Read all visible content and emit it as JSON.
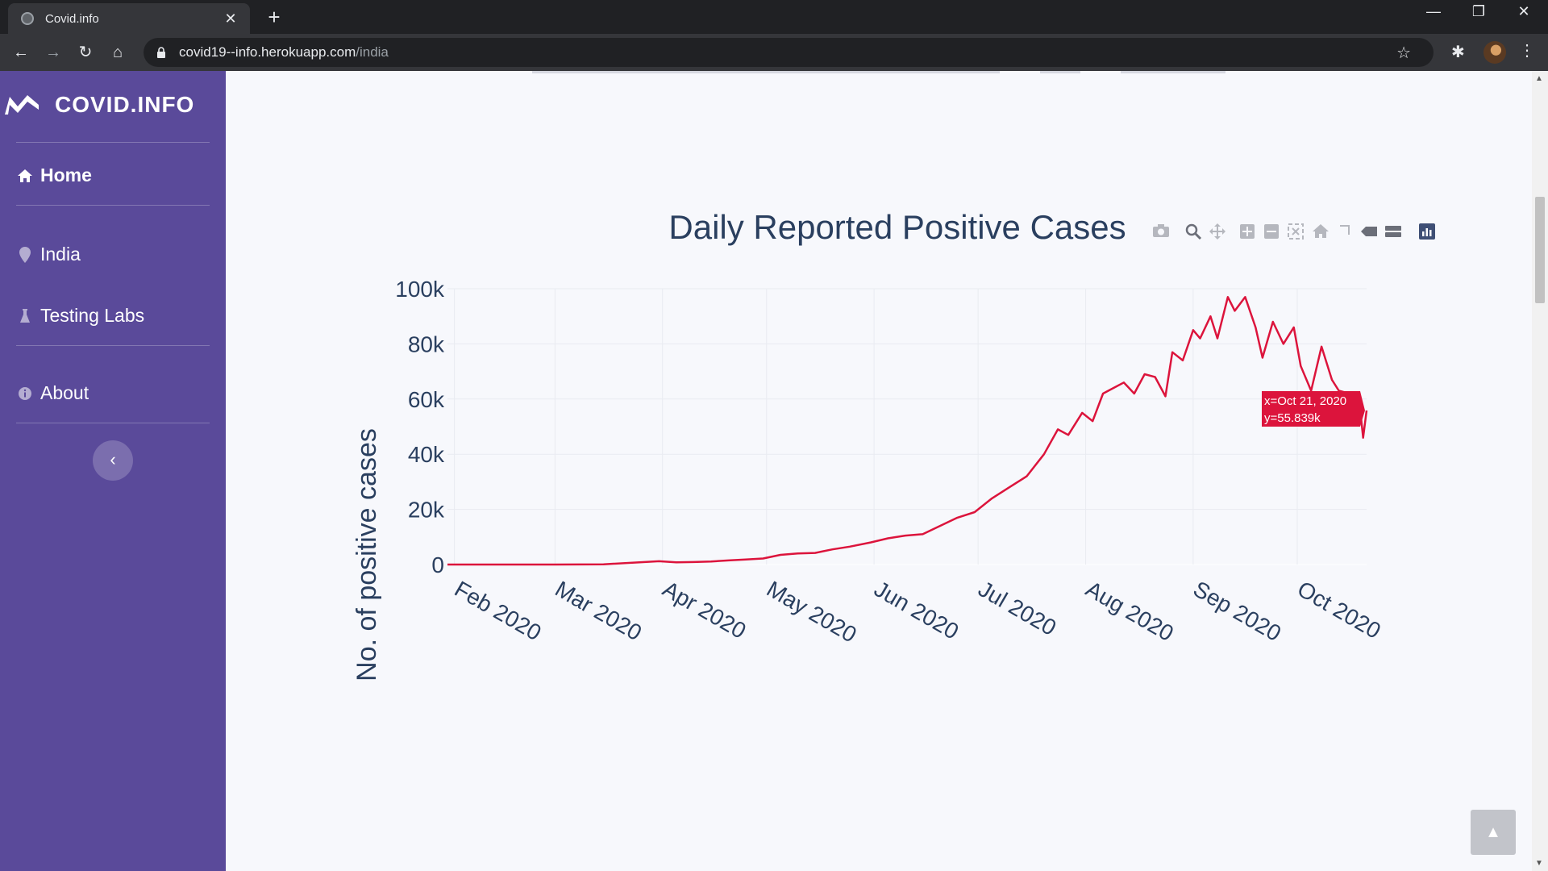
{
  "browser": {
    "tab_title": "Covid.info",
    "tab_close": "✕",
    "new_tab": "+",
    "url_host": "covid19--info.herokuapp.com",
    "url_path": "/india",
    "win_minimize": "—",
    "win_restore": "❐",
    "win_close": "✕"
  },
  "sidebar": {
    "brand": "COVID.INFO",
    "items": [
      {
        "label": "Home",
        "icon": "home-icon"
      },
      {
        "label": "India",
        "icon": "map-marker-icon"
      },
      {
        "label": "Testing Labs",
        "icon": "flask-icon"
      },
      {
        "label": "About",
        "icon": "info-icon"
      }
    ],
    "collapse_glyph": "‹"
  },
  "back_to_top_glyph": "▲",
  "colors": {
    "sidebar_bg": "#5a4a9a",
    "line": "#dc143c",
    "text": "#2a3f5f"
  },
  "chart_data": {
    "type": "line",
    "title": "Daily Reported Positive Cases",
    "ylabel": "No. of positive cases",
    "xlabel": "",
    "ylim": [
      0,
      100000
    ],
    "yticks": [
      "0",
      "20k",
      "40k",
      "60k",
      "80k",
      "100k"
    ],
    "xticks": [
      "Feb 2020",
      "Mar 2020",
      "Apr 2020",
      "May 2020",
      "Jun 2020",
      "Jul 2020",
      "Aug 2020",
      "Sep 2020",
      "Oct 2020"
    ],
    "xrange": [
      "2020-01-30",
      "2020-10-21"
    ],
    "grid": true,
    "series": [
      {
        "x": [
          "2020-01-30",
          "2020-02-15",
          "2020-03-01",
          "2020-03-15",
          "2020-03-31",
          "2020-04-05",
          "2020-04-10",
          "2020-04-15",
          "2020-04-20",
          "2020-04-25",
          "2020-04-30",
          "2020-05-05",
          "2020-05-10",
          "2020-05-15",
          "2020-05-20",
          "2020-05-25",
          "2020-05-31",
          "2020-06-05",
          "2020-06-10",
          "2020-06-15",
          "2020-06-20",
          "2020-06-25",
          "2020-06-30",
          "2020-07-05",
          "2020-07-10",
          "2020-07-15",
          "2020-07-20",
          "2020-07-24",
          "2020-07-27",
          "2020-07-31",
          "2020-08-03",
          "2020-08-06",
          "2020-08-09",
          "2020-08-12",
          "2020-08-15",
          "2020-08-18",
          "2020-08-21",
          "2020-08-24",
          "2020-08-26",
          "2020-08-29",
          "2020-09-01",
          "2020-09-03",
          "2020-09-06",
          "2020-09-08",
          "2020-09-11",
          "2020-09-13",
          "2020-09-16",
          "2020-09-19",
          "2020-09-21",
          "2020-09-24",
          "2020-09-27",
          "2020-09-30",
          "2020-10-02",
          "2020-10-05",
          "2020-10-08",
          "2020-10-11",
          "2020-10-13",
          "2020-10-16",
          "2020-10-19",
          "2020-10-20",
          "2020-10-21"
        ],
        "y": [
          0,
          0,
          0,
          100,
          1200,
          800,
          900,
          1100,
          1500,
          1800,
          2200,
          3500,
          4000,
          4200,
          5500,
          6500,
          8000,
          9500,
          10500,
          11000,
          14000,
          17000,
          19000,
          24000,
          28000,
          32000,
          40000,
          49000,
          47000,
          55000,
          52000,
          62000,
          64000,
          66000,
          62000,
          69000,
          68000,
          61000,
          77000,
          74000,
          85000,
          82000,
          90000,
          82000,
          97000,
          92000,
          97000,
          86000,
          75000,
          88000,
          80000,
          86000,
          72000,
          63000,
          79000,
          67000,
          63000,
          62000,
          58000,
          46000,
          55839
        ]
      }
    ],
    "tooltip": {
      "x_text": "x=Oct 21, 2020",
      "y_text": "y=55.839k"
    }
  }
}
